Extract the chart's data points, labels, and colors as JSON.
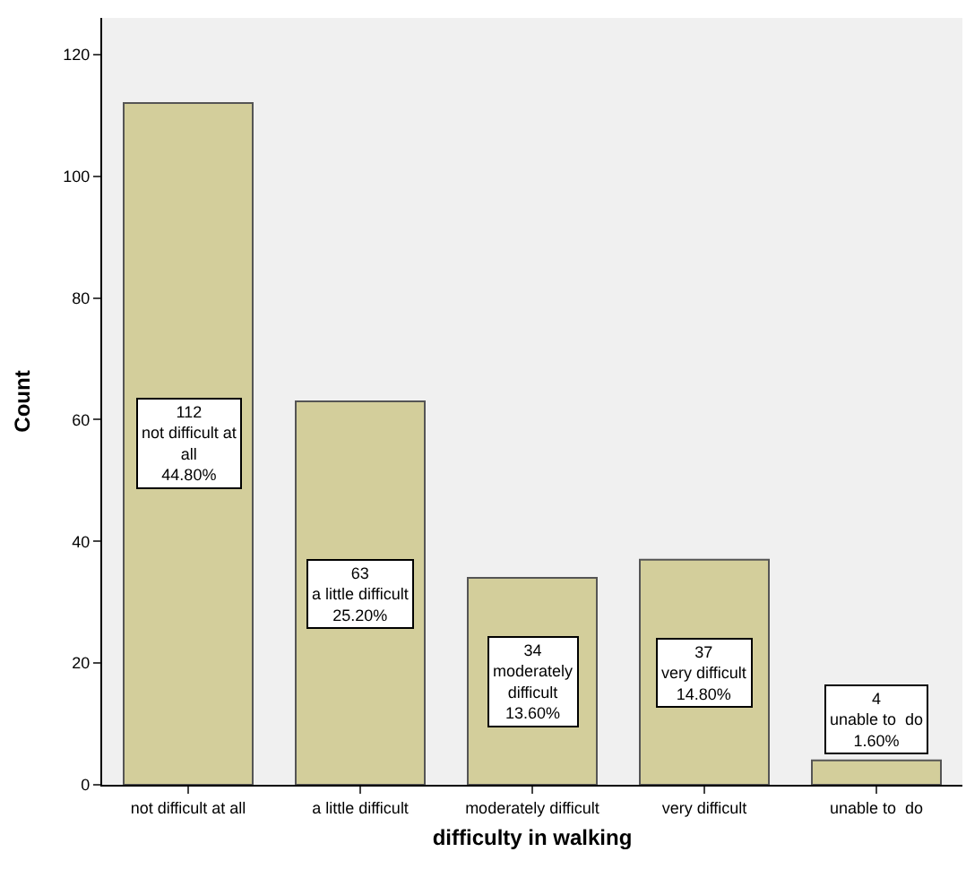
{
  "chart_data": {
    "type": "bar",
    "xlabel": "difficulty in walking",
    "ylabel": "Count",
    "categories": [
      "not difficult at all",
      "a little difficult",
      "moderately difficult",
      "very difficult",
      "unable to  do"
    ],
    "values": [
      112,
      63,
      34,
      37,
      4
    ],
    "value_labels": [
      "112\nnot difficult at\nall\n44.80%",
      "63\na little difficult\n25.20%",
      "34\nmoderately\ndifficult\n13.60%",
      "37\nvery difficult\n14.80%",
      "4\nunable to  do\n1.60%"
    ],
    "color": "#d3ce9b",
    "ylim": [
      0,
      126
    ],
    "yticks": [
      0,
      20,
      40,
      60,
      80,
      100,
      120
    ],
    "grid": false,
    "legend": false
  }
}
